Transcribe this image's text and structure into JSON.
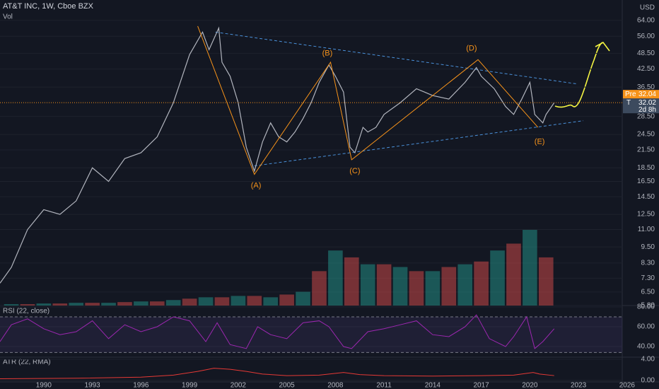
{
  "chart_data": [
    {
      "type": "line",
      "title": "AT&T INC, 1W, Cboe BZX",
      "log_scale": true,
      "color": "#b2b5be",
      "axis_unit": "USD",
      "x": [
        1987.3,
        1988,
        1989,
        1990,
        1991,
        1992,
        1993,
        1994,
        1995,
        1996,
        1997,
        1998,
        1999,
        1999.8,
        2000.2,
        2000.8,
        2001,
        2001.5,
        2002,
        2002.5,
        2003,
        2003.5,
        2004,
        2004.5,
        2005,
        2005.5,
        2006,
        2006.5,
        2007,
        2007.6,
        2008,
        2008.5,
        2008.9,
        2009.2,
        2009.7,
        2010,
        2010.5,
        2011,
        2012,
        2013,
        2013.5,
        2014,
        2015,
        2016,
        2016.7,
        2017,
        2017.8,
        2018.5,
        2019,
        2019.5,
        2020,
        2020.3,
        2020.8,
        2021,
        2021.5
      ],
      "values": [
        7,
        8,
        11,
        13,
        12.5,
        14,
        18.5,
        16.5,
        20,
        21,
        24,
        32,
        48,
        58,
        50,
        60,
        45,
        40,
        32,
        22,
        18,
        23,
        27,
        24,
        23,
        25,
        28,
        32,
        38,
        44,
        40,
        35,
        22,
        21,
        26,
        25,
        26,
        29,
        32,
        36,
        35,
        34,
        33,
        38,
        43,
        40,
        36,
        31,
        29,
        33,
        38,
        29,
        27,
        29,
        32
      ],
      "xlim": [
        1987.3,
        2025.7
      ],
      "ylim": [
        5.8,
        76
      ],
      "yticks": [
        {
          "value": 64,
          "label": "64.00"
        },
        {
          "value": 56,
          "label": "56.00"
        },
        {
          "value": 48.5,
          "label": "48.50"
        },
        {
          "value": 42.5,
          "label": "42.50"
        },
        {
          "value": 36.5,
          "label": "36.50"
        },
        {
          "value": 28.5,
          "label": "28.50"
        },
        {
          "value": 24.5,
          "label": "24.50"
        },
        {
          "value": 21.5,
          "label": "21.50"
        },
        {
          "value": 18.5,
          "label": "18.50"
        },
        {
          "value": 16.5,
          "label": "16.50"
        },
        {
          "value": 14.5,
          "label": "14.50"
        },
        {
          "value": 12.5,
          "label": "12.50"
        },
        {
          "value": 11,
          "label": "11.00"
        },
        {
          "value": 9.5,
          "label": "9.50"
        },
        {
          "value": 8.3,
          "label": "8.30"
        },
        {
          "value": 7.3,
          "label": "7.30"
        },
        {
          "value": 6.5,
          "label": "6.50"
        },
        {
          "value": 5.8,
          "label": "5.80"
        }
      ],
      "last_price": {
        "value": 32.02,
        "label": "32.02",
        "symbol": "T",
        "countdown": "2d 8h"
      },
      "pre_price": {
        "value": 32.04,
        "label": "32.04",
        "name": "Pre"
      },
      "wave_path": {
        "color": "#f7931a",
        "x": [
          1999.5,
          2003.0,
          2007.7,
          2009.0,
          2016.8,
          2020.5
        ],
        "values": [
          61,
          17.5,
          45,
          19.8,
          46,
          26
        ]
      },
      "trend_lines": [
        {
          "color": "#4a90d9",
          "x": [
            2000.6,
            2022.9
          ],
          "values": [
            58,
            37.5
          ]
        },
        {
          "color": "#4a90d9",
          "x": [
            2003.0,
            2023.3
          ],
          "values": [
            18.8,
            27.5
          ]
        }
      ],
      "wave_labels": [
        {
          "text": "(A)",
          "x": 2003.1,
          "value": 15.9
        },
        {
          "text": "(B)",
          "x": 2007.5,
          "value": 48.5
        },
        {
          "text": "(C)",
          "x": 2009.2,
          "value": 18
        },
        {
          "text": "(D)",
          "x": 2016.4,
          "value": 50.5
        },
        {
          "text": "(E)",
          "x": 2020.6,
          "value": 23
        }
      ]
    },
    {
      "type": "bar",
      "title": "Vol",
      "xlim": [
        1987.3,
        2025.7
      ],
      "x": [
        1988,
        1989,
        1990,
        1991,
        1992,
        1993,
        1994,
        1995,
        1996,
        1997,
        1998,
        1999,
        2000,
        2001,
        2002,
        2003,
        2004,
        2005,
        2006,
        2007,
        2008,
        2009,
        2010,
        2011,
        2012,
        2013,
        2014,
        2015,
        2016,
        2017,
        2018,
        2019,
        2020,
        2021
      ],
      "values": [
        1,
        1,
        1.5,
        1.5,
        2,
        2,
        2,
        2.5,
        3,
        3,
        4,
        5,
        6,
        6,
        7,
        7,
        6,
        8,
        10,
        25,
        40,
        35,
        30,
        30,
        28,
        25,
        25,
        28,
        30,
        32,
        40,
        45,
        55,
        35
      ],
      "colors": [
        "#26a69a",
        "#ef5350"
      ]
    },
    {
      "type": "line",
      "title": "RSI (22, close)",
      "color": "#9c27b0",
      "xlim": [
        1987.3,
        2025.7
      ],
      "ylim": [
        29.3,
        81.4
      ],
      "x": [
        1987.3,
        1988,
        1989,
        1990,
        1991,
        1992,
        1993,
        1994,
        1995,
        1996,
        1997,
        1998,
        1999,
        2000,
        2000.7,
        2001.5,
        2002.5,
        2003.2,
        2004,
        2005,
        2006,
        2007,
        2007.6,
        2008.5,
        2009,
        2010,
        2011,
        2012,
        2013,
        2014,
        2015,
        2016,
        2016.7,
        2017.5,
        2018.5,
        2019,
        2019.8,
        2020.3,
        2020.8,
        2021.5
      ],
      "values": [
        45,
        62,
        68,
        58,
        52,
        55,
        66,
        48,
        62,
        55,
        60,
        70,
        66,
        45,
        64,
        42,
        38,
        60,
        52,
        48,
        64,
        66,
        60,
        40,
        38,
        55,
        58,
        62,
        66,
        52,
        50,
        60,
        72,
        48,
        40,
        50,
        70,
        38,
        45,
        58
      ],
      "bands": [
        70,
        34
      ],
      "yticks": [
        {
          "value": 80,
          "label": "80.00"
        },
        {
          "value": 60,
          "label": "60.00"
        },
        {
          "value": 40,
          "label": "40.00"
        }
      ]
    },
    {
      "type": "line",
      "title": "ATR (22, RMA)",
      "color": "#e53935",
      "xlim": [
        1987.3,
        2025.7
      ],
      "ylim": [
        -0.3,
        4.4
      ],
      "x": [
        1987.3,
        1992,
        1996,
        1998,
        1999.5,
        2000.5,
        2001.5,
        2002.5,
        2003.5,
        2005,
        2007,
        2008.5,
        2009.5,
        2011,
        2014,
        2017,
        2019,
        2020.2,
        2020.6,
        2021.5
      ],
      "values": [
        0.3,
        0.4,
        0.6,
        1,
        1.7,
        2.3,
        2.1,
        1.7,
        1.2,
        0.9,
        1,
        1.5,
        1.1,
        0.9,
        0.8,
        0.9,
        1,
        1.5,
        1.2,
        0.9
      ],
      "yticks": [
        {
          "value": 4,
          "label": "4.00"
        },
        {
          "value": 0,
          "label": "0.00"
        }
      ],
      "xticks": [
        1990,
        1993,
        1996,
        1999,
        2002,
        2005,
        2008,
        2011,
        2014,
        2017,
        2020,
        2023,
        2026
      ]
    }
  ]
}
